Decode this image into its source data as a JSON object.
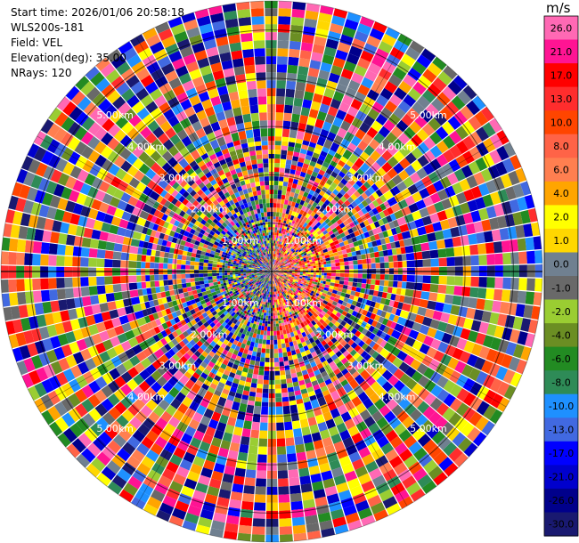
{
  "header": {
    "start_time": "Start time: 2026/01/06 20:58:18",
    "instrument": "WLS200s-181",
    "field": "Field: VEL",
    "elevation": "Elevation(deg): 35.00",
    "nrays": "NRays: 120"
  },
  "colorbar": {
    "unit": "m/s",
    "labels": [
      "26.0",
      "21.0",
      "17.0",
      "13.0",
      "10.0",
      "8.0",
      "6.0",
      "4.0",
      "2.0",
      "1.0",
      "0.0",
      "-1.0",
      "-2.0",
      "-4.0",
      "-6.0",
      "-8.0",
      "-10.0",
      "-13.0",
      "-17.0",
      "-21.0",
      "-26.0",
      "-30.0"
    ],
    "colors": [
      "#ff69b4",
      "#ff1493",
      "#ff0000",
      "#ff2d2d",
      "#ff4500",
      "#ff6347",
      "#ff7f50",
      "#ffa500",
      "#ffff00",
      "#ffd700",
      "#708090",
      "#696969",
      "#9acd32",
      "#6b8e23",
      "#228b22",
      "#2e8b57",
      "#1e90ff",
      "#4169e1",
      "#0000ff",
      "#0000cd",
      "#00008b",
      "#191970"
    ]
  },
  "chart_data": {
    "type": "heatmap",
    "plot": "PPI",
    "field": "VEL",
    "units": "m/s",
    "nrays": 120,
    "elevation_deg": 35.0,
    "range_max_km": 5.6,
    "range_ring_labels": [
      "1.00km",
      "2.00km",
      "3.00km",
      "4.00km",
      "5.00km"
    ],
    "ring_label_positions": [
      "NW",
      "NE",
      "SW",
      "SE"
    ]
  }
}
